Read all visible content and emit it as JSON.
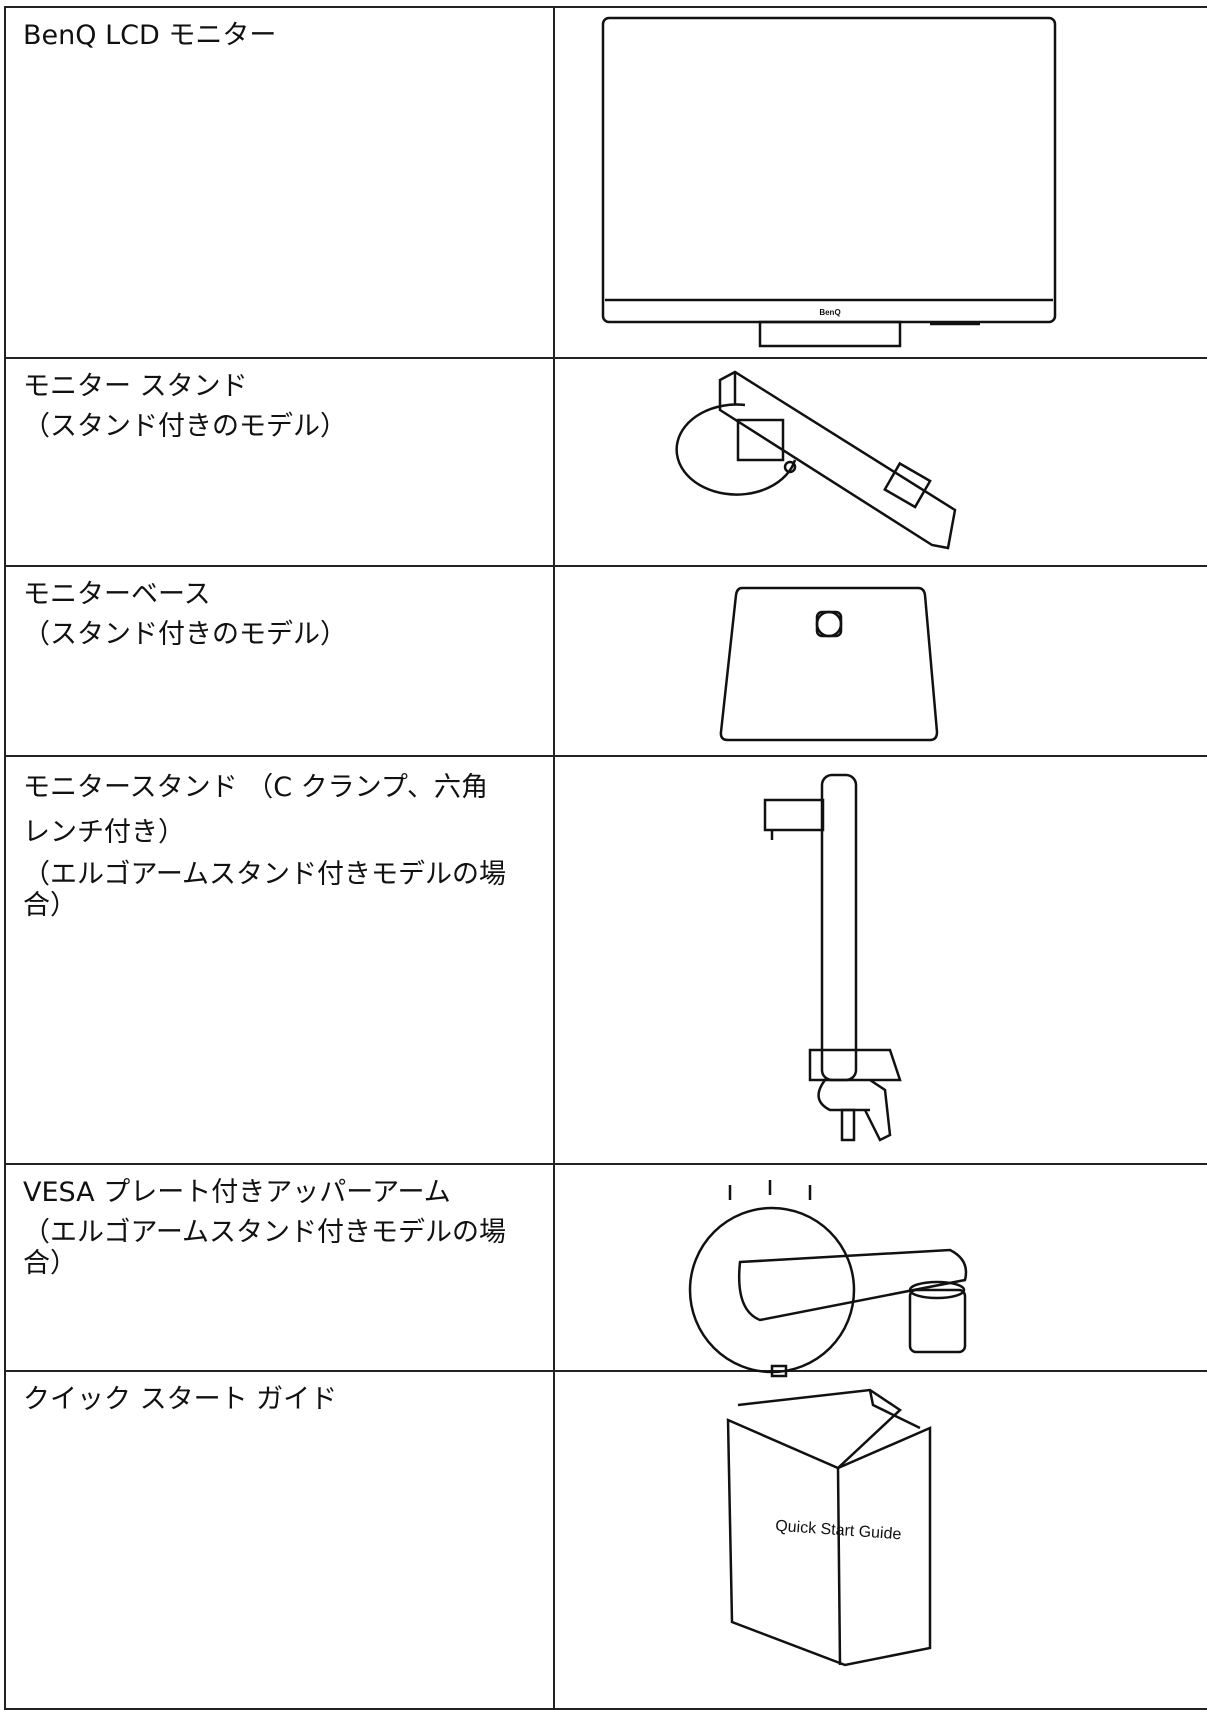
{
  "rows": [
    {
      "lines": [
        "BenQ LCD モニター"
      ],
      "image_label": "BenQ"
    },
    {
      "lines": [
        "モニター スタンド",
        "（スタンド付きのモデル）"
      ]
    },
    {
      "lines": [
        "モニターベース",
        "（スタンド付きのモデル）"
      ]
    },
    {
      "lines": [
        "モニタースタンド （C クランプ、六角",
        "レンチ付き）",
        "（エルゴアームスタンド付きモデルの場",
        "合）"
      ]
    },
    {
      "lines": [
        "VESA プレート付きアッパーアーム",
        "（エルゴアームスタンド付きモデルの場",
        "合）"
      ]
    },
    {
      "lines": [
        "クイック スタート ガイド"
      ],
      "image_label": "Quick Start Guide"
    }
  ]
}
